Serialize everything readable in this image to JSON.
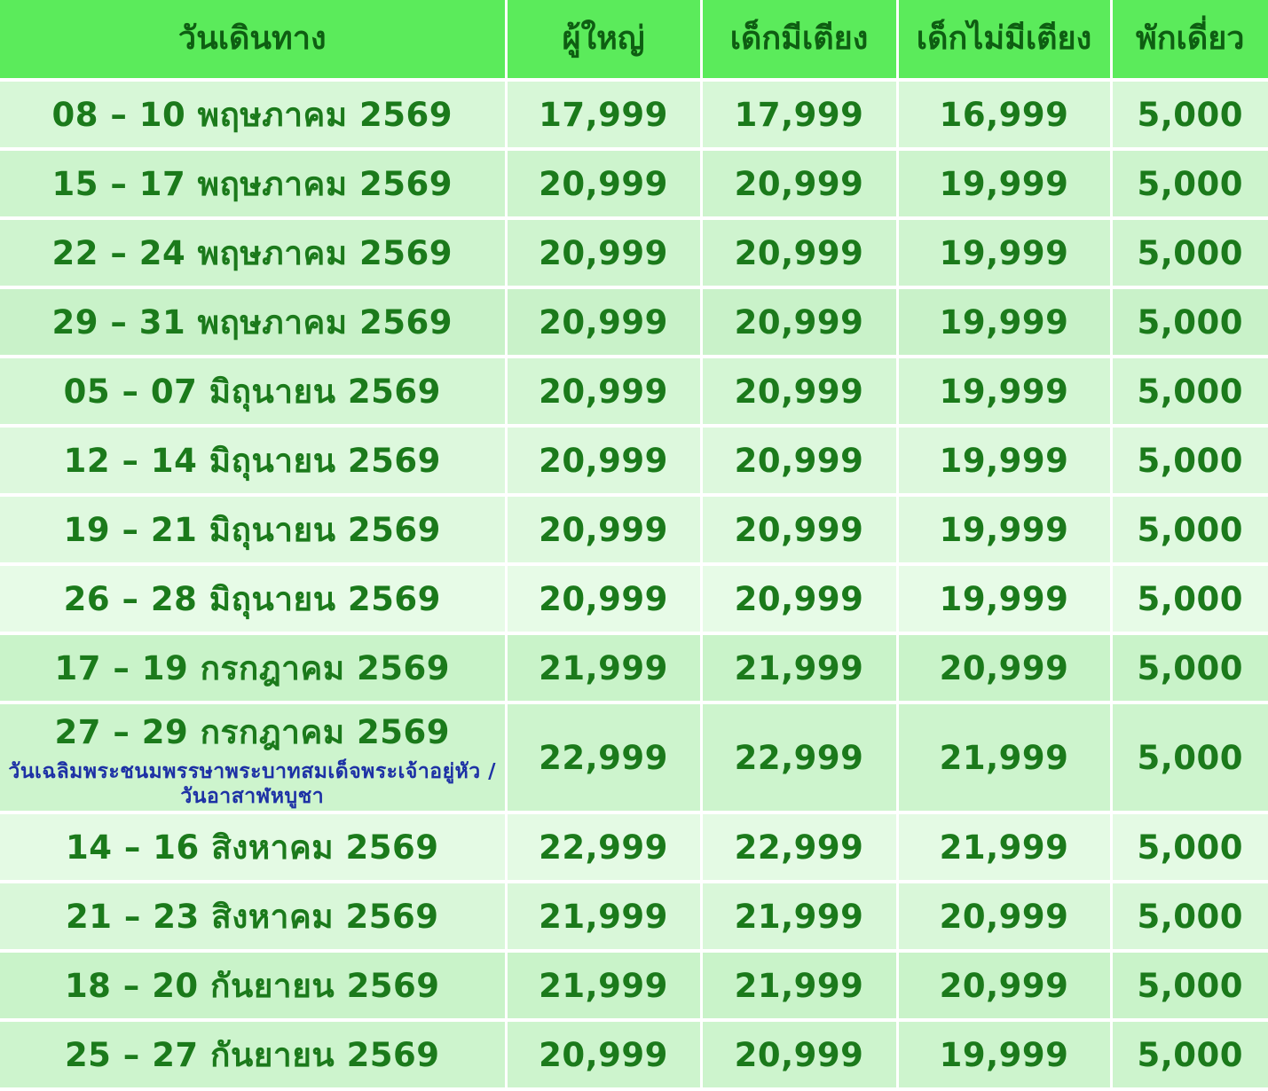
{
  "colors": {
    "header_bg": "#5BEB5B",
    "header_text": "#0E5E12",
    "cell_text": "#1B7A1B",
    "note_text": "#1D31A5",
    "grid": "#FFFFFF"
  },
  "table": {
    "columns": [
      {
        "label": "วันเดินทาง"
      },
      {
        "label": "ผู้ใหญ่"
      },
      {
        "label": "เด็กมีเตียง"
      },
      {
        "label": "เด็กไม่มีเตียง"
      },
      {
        "label": "พักเดี่ยว"
      }
    ],
    "rows": [
      {
        "date": "08 – 10 พฤษภาคม 2569",
        "adult": "17,999",
        "child_bed": "17,999",
        "child_no_bed": "16,999",
        "single": "5,000",
        "bg": "#D7F7D7",
        "tall": false,
        "note_lines": []
      },
      {
        "date": "15 – 17 พฤษภาคม 2569",
        "adult": "20,999",
        "child_bed": "20,999",
        "child_no_bed": "19,999",
        "single": "5,000",
        "bg": "#CDF4CD",
        "tall": false,
        "note_lines": []
      },
      {
        "date": "22 – 24 พฤษภาคม 2569",
        "adult": "20,999",
        "child_bed": "20,999",
        "child_no_bed": "19,999",
        "single": "5,000",
        "bg": "#CFF4CF",
        "tall": false,
        "note_lines": []
      },
      {
        "date": "29 – 31 พฤษภาคม 2569",
        "adult": "20,999",
        "child_bed": "20,999",
        "child_no_bed": "19,999",
        "single": "5,000",
        "bg": "#C9F2C9",
        "tall": false,
        "note_lines": []
      },
      {
        "date": "05 – 07 มิถุนายน 2569",
        "adult": "20,999",
        "child_bed": "20,999",
        "child_no_bed": "19,999",
        "single": "5,000",
        "bg": "#D4F6D4",
        "tall": false,
        "note_lines": []
      },
      {
        "date": "12 – 14 มิถุนายน 2569",
        "adult": "20,999",
        "child_bed": "20,999",
        "child_no_bed": "19,999",
        "single": "5,000",
        "bg": "#DDF8DD",
        "tall": false,
        "note_lines": []
      },
      {
        "date": "19 – 21 มิถุนายน 2569",
        "adult": "20,999",
        "child_bed": "20,999",
        "child_no_bed": "19,999",
        "single": "5,000",
        "bg": "#DFF9DF",
        "tall": false,
        "note_lines": []
      },
      {
        "date": "26 – 28 มิถุนายน 2569",
        "adult": "20,999",
        "child_bed": "20,999",
        "child_no_bed": "19,999",
        "single": "5,000",
        "bg": "#E7FBE7",
        "tall": false,
        "note_lines": []
      },
      {
        "date": "17 – 19 กรกฎาคม 2569",
        "adult": "21,999",
        "child_bed": "21,999",
        "child_no_bed": "20,999",
        "single": "5,000",
        "bg": "#C9F3C9",
        "tall": false,
        "note_lines": []
      },
      {
        "date": "27 – 29 กรกฎาคม 2569",
        "adult": "22,999",
        "child_bed": "22,999",
        "child_no_bed": "21,999",
        "single": "5,000",
        "bg": "#CDF4CD",
        "tall": true,
        "note_lines": [
          "วันเฉลิมพระชนมพรรษาพระบาทสมเด็จพระเจ้าอยู่หัว /",
          "วันอาสาฬหบูชา"
        ]
      },
      {
        "date": "14 – 16 สิงหาคม 2569",
        "adult": "22,999",
        "child_bed": "22,999",
        "child_no_bed": "21,999",
        "single": "5,000",
        "bg": "#E4FAE4",
        "tall": false,
        "note_lines": []
      },
      {
        "date": "21 – 23 สิงหาคม 2569",
        "adult": "21,999",
        "child_bed": "21,999",
        "child_no_bed": "20,999",
        "single": "5,000",
        "bg": "#D9F7D9",
        "tall": false,
        "note_lines": []
      },
      {
        "date": "18 – 20 กันยายน 2569",
        "adult": "21,999",
        "child_bed": "21,999",
        "child_no_bed": "20,999",
        "single": "5,000",
        "bg": "#C9F3C9",
        "tall": false,
        "note_lines": []
      },
      {
        "date": "25 – 27 กันยายน 2569",
        "adult": "20,999",
        "child_bed": "20,999",
        "child_no_bed": "19,999",
        "single": "5,000",
        "bg": "#CDF4CD",
        "tall": false,
        "note_lines": []
      }
    ]
  }
}
